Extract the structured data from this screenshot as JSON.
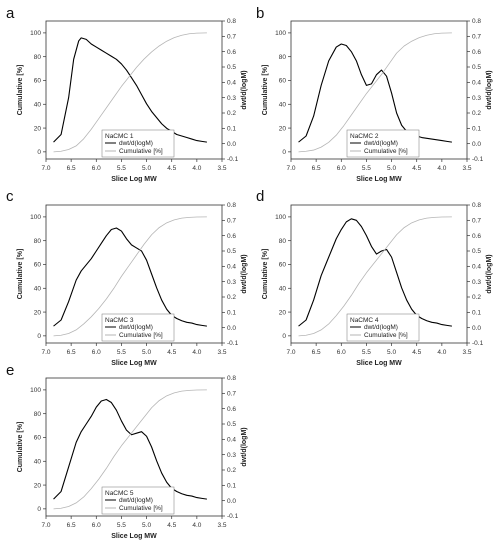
{
  "chart_data": [
    {
      "type": "line",
      "panel_label": "a",
      "legend_title": "NaCMC 1",
      "xlabel": "Slice Log MW",
      "ylabel_left": "Cumulative [%]",
      "ylabel_right": "dwt/d(logM)",
      "xlim": [
        7.0,
        3.5
      ],
      "xticks": [
        "7.0",
        "6.5",
        "6.0",
        "5.5",
        "5.0",
        "4.5",
        "4.0",
        "3.5"
      ],
      "ylim_left": [
        -6,
        110
      ],
      "yticks_left": [
        "0",
        "20",
        "40",
        "60",
        "80",
        "100"
      ],
      "ylim_right": [
        -0.1,
        0.8
      ],
      "yticks_right": [
        "-0.1",
        "0.0",
        "0.1",
        "0.2",
        "0.3",
        "0.4",
        "0.5",
        "0.6",
        "0.7",
        "0.8"
      ],
      "series": [
        {
          "name": "dwt/d(logM)",
          "axis": "right",
          "color": "#000000",
          "x": [
            6.85,
            6.7,
            6.55,
            6.45,
            6.35,
            6.3,
            6.2,
            6.1,
            6.0,
            5.9,
            5.8,
            5.7,
            5.6,
            5.5,
            5.4,
            5.3,
            5.2,
            5.1,
            5.0,
            4.9,
            4.8,
            4.7,
            4.6,
            4.5,
            4.4,
            4.3,
            4.2,
            4.1,
            4.0,
            3.9,
            3.8
          ],
          "y": [
            0.01,
            0.06,
            0.3,
            0.55,
            0.67,
            0.69,
            0.68,
            0.65,
            0.63,
            0.61,
            0.59,
            0.57,
            0.55,
            0.52,
            0.48,
            0.43,
            0.38,
            0.32,
            0.26,
            0.21,
            0.17,
            0.13,
            0.1,
            0.08,
            0.06,
            0.05,
            0.04,
            0.03,
            0.02,
            0.015,
            0.01
          ]
        },
        {
          "name": "Cumulative [%]",
          "axis": "left",
          "color": "#b5b5b5",
          "x": [
            6.85,
            6.7,
            6.55,
            6.4,
            6.25,
            6.1,
            5.95,
            5.8,
            5.65,
            5.5,
            5.35,
            5.2,
            5.05,
            4.9,
            4.75,
            4.6,
            4.45,
            4.3,
            4.15,
            4.0,
            3.8
          ],
          "y": [
            0,
            0.5,
            2,
            5,
            11,
            19,
            28,
            37,
            46,
            55,
            63,
            71,
            78,
            84,
            89,
            93,
            96,
            98,
            99.3,
            99.8,
            100
          ]
        }
      ]
    },
    {
      "type": "line",
      "panel_label": "b",
      "legend_title": "NaCMC 2",
      "xlabel": "Slice Log MW",
      "ylabel_left": "Cumulative [%]",
      "ylabel_right": "dwt/d(logM)",
      "xlim": [
        7.0,
        3.5
      ],
      "xticks": [
        "7.0",
        "6.5",
        "6.0",
        "5.5",
        "5.0",
        "4.5",
        "4.0",
        "3.5"
      ],
      "ylim_left": [
        -6,
        110
      ],
      "yticks_left": [
        "0",
        "20",
        "40",
        "60",
        "80",
        "100"
      ],
      "ylim_right": [
        -0.1,
        0.8
      ],
      "yticks_right": [
        "-0.1",
        "0.0",
        "0.1",
        "0.2",
        "0.3",
        "0.4",
        "0.5",
        "0.6",
        "0.7",
        "0.8"
      ],
      "series": [
        {
          "name": "dwt/d(logM)",
          "axis": "right",
          "color": "#000000",
          "x": [
            6.85,
            6.7,
            6.55,
            6.4,
            6.25,
            6.1,
            6.0,
            5.9,
            5.8,
            5.7,
            5.6,
            5.5,
            5.4,
            5.3,
            5.2,
            5.1,
            5.0,
            4.9,
            4.8,
            4.7,
            4.6,
            4.5,
            4.4,
            4.3,
            4.2,
            4.1,
            4.0,
            3.9,
            3.8
          ],
          "y": [
            0.01,
            0.05,
            0.18,
            0.38,
            0.54,
            0.63,
            0.65,
            0.64,
            0.6,
            0.54,
            0.45,
            0.38,
            0.39,
            0.45,
            0.48,
            0.44,
            0.33,
            0.2,
            0.12,
            0.08,
            0.06,
            0.05,
            0.04,
            0.035,
            0.03,
            0.025,
            0.02,
            0.015,
            0.01
          ]
        },
        {
          "name": "Cumulative [%]",
          "axis": "left",
          "color": "#b5b5b5",
          "x": [
            6.85,
            6.7,
            6.55,
            6.4,
            6.25,
            6.1,
            5.95,
            5.8,
            5.65,
            5.5,
            5.35,
            5.2,
            5.05,
            4.9,
            4.75,
            4.6,
            4.45,
            4.3,
            4.15,
            4.0,
            3.8
          ],
          "y": [
            0,
            0.5,
            1.5,
            4,
            8,
            14,
            22,
            31,
            40,
            49,
            57,
            65,
            74,
            83,
            89,
            93,
            96,
            98,
            99.3,
            99.8,
            100
          ]
        }
      ]
    },
    {
      "type": "line",
      "panel_label": "c",
      "legend_title": "NaCMC 3",
      "xlabel": "Slice Log MW",
      "ylabel_left": "Cumulative [%]",
      "ylabel_right": "dwt/d(logM)",
      "xlim": [
        7.0,
        3.5
      ],
      "xticks": [
        "7.0",
        "6.5",
        "6.0",
        "5.5",
        "5.0",
        "4.5",
        "4.0",
        "3.5"
      ],
      "ylim_left": [
        -6,
        110
      ],
      "yticks_left": [
        "0",
        "20",
        "40",
        "60",
        "80",
        "100"
      ],
      "ylim_right": [
        -0.1,
        0.8
      ],
      "yticks_right": [
        "-0.1",
        "0.0",
        "0.1",
        "0.2",
        "0.3",
        "0.4",
        "0.5",
        "0.6",
        "0.7",
        "0.8"
      ],
      "series": [
        {
          "name": "dwt/d(logM)",
          "axis": "right",
          "color": "#000000",
          "x": [
            6.85,
            6.7,
            6.55,
            6.4,
            6.3,
            6.2,
            6.1,
            6.0,
            5.9,
            5.8,
            5.7,
            5.6,
            5.5,
            5.4,
            5.3,
            5.2,
            5.1,
            5.0,
            4.9,
            4.8,
            4.7,
            4.6,
            4.5,
            4.4,
            4.3,
            4.2,
            4.1,
            4.0,
            3.9,
            3.8
          ],
          "y": [
            0.01,
            0.05,
            0.17,
            0.31,
            0.37,
            0.41,
            0.45,
            0.5,
            0.55,
            0.6,
            0.64,
            0.65,
            0.63,
            0.58,
            0.54,
            0.52,
            0.5,
            0.44,
            0.35,
            0.26,
            0.18,
            0.12,
            0.08,
            0.06,
            0.045,
            0.035,
            0.03,
            0.02,
            0.015,
            0.01
          ]
        },
        {
          "name": "Cumulative [%]",
          "axis": "left",
          "color": "#b5b5b5",
          "x": [
            6.85,
            6.7,
            6.55,
            6.4,
            6.25,
            6.1,
            5.95,
            5.8,
            5.65,
            5.5,
            5.35,
            5.2,
            5.05,
            4.9,
            4.75,
            4.6,
            4.45,
            4.3,
            4.15,
            4.0,
            3.8
          ],
          "y": [
            0,
            0.5,
            2,
            5,
            10,
            16,
            23,
            31,
            40,
            50,
            59,
            68,
            77,
            85,
            91,
            95,
            97.5,
            99,
            99.6,
            99.9,
            100
          ]
        }
      ]
    },
    {
      "type": "line",
      "panel_label": "d",
      "legend_title": "NaCMC 4",
      "xlabel": "Slice Log MW",
      "ylabel_left": "Cumulative [%]",
      "ylabel_right": "dwt/d(logM)",
      "xlim": [
        7.0,
        3.5
      ],
      "xticks": [
        "7.0",
        "6.5",
        "6.0",
        "5.5",
        "5.0",
        "4.5",
        "4.0",
        "3.5"
      ],
      "ylim_left": [
        -6,
        110
      ],
      "yticks_left": [
        "0",
        "20",
        "40",
        "60",
        "80",
        "100"
      ],
      "ylim_right": [
        -0.1,
        0.8
      ],
      "yticks_right": [
        "-0.1",
        "0.0",
        "0.1",
        "0.2",
        "0.3",
        "0.4",
        "0.5",
        "0.6",
        "0.7",
        "0.8"
      ],
      "series": [
        {
          "name": "dwt/d(logM)",
          "axis": "right",
          "color": "#000000",
          "x": [
            6.85,
            6.7,
            6.55,
            6.4,
            6.3,
            6.2,
            6.1,
            6.0,
            5.9,
            5.8,
            5.7,
            5.6,
            5.5,
            5.4,
            5.3,
            5.2,
            5.1,
            5.0,
            4.9,
            4.8,
            4.7,
            4.6,
            4.5,
            4.4,
            4.3,
            4.2,
            4.1,
            4.0,
            3.9,
            3.8
          ],
          "y": [
            0.01,
            0.05,
            0.18,
            0.34,
            0.42,
            0.5,
            0.58,
            0.64,
            0.69,
            0.71,
            0.7,
            0.66,
            0.6,
            0.53,
            0.48,
            0.5,
            0.51,
            0.46,
            0.36,
            0.26,
            0.18,
            0.12,
            0.08,
            0.06,
            0.045,
            0.035,
            0.03,
            0.02,
            0.015,
            0.01
          ]
        },
        {
          "name": "Cumulative [%]",
          "axis": "left",
          "color": "#b5b5b5",
          "x": [
            6.85,
            6.7,
            6.55,
            6.4,
            6.25,
            6.1,
            5.95,
            5.8,
            5.65,
            5.5,
            5.35,
            5.2,
            5.05,
            4.9,
            4.75,
            4.6,
            4.45,
            4.3,
            4.15,
            4.0,
            3.8
          ],
          "y": [
            0,
            0.5,
            2,
            5,
            10,
            17,
            25,
            34,
            44,
            53,
            61,
            69,
            77,
            85,
            91,
            95,
            97.5,
            99,
            99.6,
            99.9,
            100
          ]
        }
      ]
    },
    {
      "type": "line",
      "panel_label": "e",
      "legend_title": "NaCMC 5",
      "xlabel": "Slice Log MW",
      "ylabel_left": "Cumulative [%]",
      "ylabel_right": "dwt/d(logM)",
      "xlim": [
        7.0,
        3.5
      ],
      "xticks": [
        "7.0",
        "6.5",
        "6.0",
        "5.5",
        "5.0",
        "4.5",
        "4.0",
        "3.5"
      ],
      "ylim_left": [
        -6,
        110
      ],
      "yticks_left": [
        "0",
        "20",
        "40",
        "60",
        "80",
        "100"
      ],
      "ylim_right": [
        -0.1,
        0.8
      ],
      "yticks_right": [
        "-0.1",
        "0.0",
        "0.1",
        "0.2",
        "0.3",
        "0.4",
        "0.5",
        "0.6",
        "0.7",
        "0.8"
      ],
      "series": [
        {
          "name": "dwt/d(logM)",
          "axis": "right",
          "color": "#000000",
          "x": [
            6.85,
            6.7,
            6.55,
            6.4,
            6.3,
            6.2,
            6.1,
            6.0,
            5.9,
            5.8,
            5.7,
            5.6,
            5.5,
            5.4,
            5.3,
            5.2,
            5.1,
            5.0,
            4.9,
            4.8,
            4.7,
            4.6,
            4.5,
            4.4,
            4.3,
            4.2,
            4.1,
            4.0,
            3.9,
            3.8
          ],
          "y": [
            0.01,
            0.06,
            0.22,
            0.38,
            0.45,
            0.5,
            0.55,
            0.61,
            0.65,
            0.66,
            0.64,
            0.59,
            0.52,
            0.46,
            0.43,
            0.44,
            0.45,
            0.42,
            0.35,
            0.26,
            0.18,
            0.12,
            0.08,
            0.06,
            0.045,
            0.035,
            0.03,
            0.02,
            0.015,
            0.01
          ]
        },
        {
          "name": "Cumulative [%]",
          "axis": "left",
          "color": "#b5b5b5",
          "x": [
            6.85,
            6.7,
            6.55,
            6.4,
            6.25,
            6.1,
            5.95,
            5.8,
            5.65,
            5.5,
            5.35,
            5.2,
            5.05,
            4.9,
            4.75,
            4.6,
            4.45,
            4.3,
            4.15,
            4.0,
            3.8
          ],
          "y": [
            0,
            0.5,
            2,
            5,
            10,
            17,
            25,
            34,
            44,
            53,
            61,
            69,
            77,
            85,
            91,
            95,
            97.5,
            99,
            99.6,
            99.9,
            100
          ]
        }
      ]
    }
  ]
}
